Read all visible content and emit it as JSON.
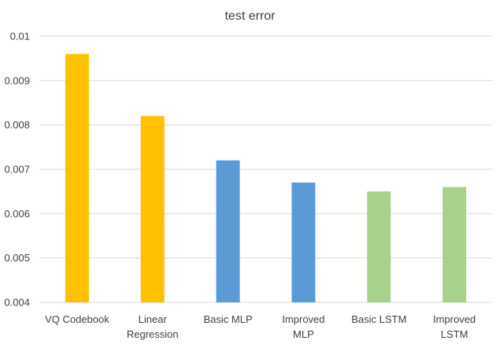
{
  "chart_data": {
    "type": "bar",
    "title": "test error",
    "xlabel": "",
    "ylabel": "",
    "ylim": [
      0.004,
      0.01
    ],
    "yticks": [
      "0.004",
      "0.005",
      "0.006",
      "0.007",
      "0.008",
      "0.009",
      "0.01"
    ],
    "grid": true,
    "legend": "none",
    "categories": [
      [
        "VQ Codebook"
      ],
      [
        "Linear",
        "Regression"
      ],
      [
        "Basic MLP"
      ],
      [
        "Improved",
        "MLP"
      ],
      [
        "Basic LSTM"
      ],
      [
        "Improved",
        "LSTM"
      ]
    ],
    "values": [
      0.0096,
      0.0082,
      0.0072,
      0.0067,
      0.0065,
      0.0066
    ],
    "colors": [
      "#ffc000",
      "#ffc000",
      "#5b9bd5",
      "#5b9bd5",
      "#a9d18e",
      "#a9d18e"
    ]
  }
}
